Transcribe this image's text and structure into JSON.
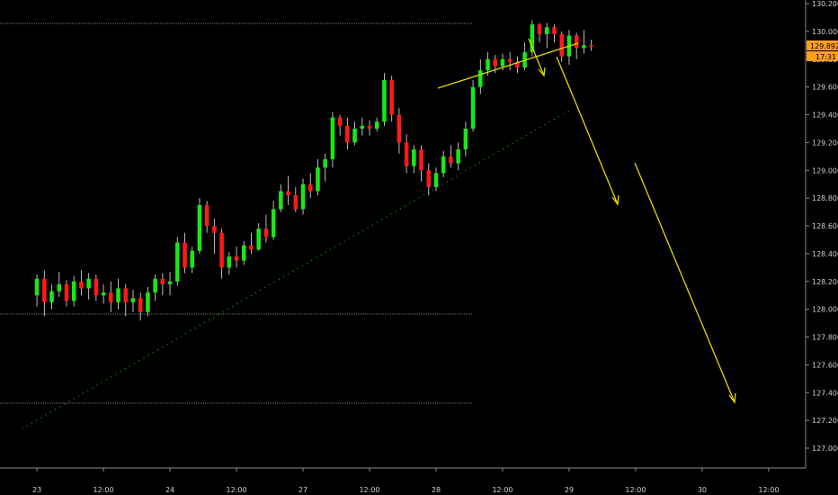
{
  "chart_data": {
    "type": "candlestick",
    "price_axis": {
      "labels": [
        "130.200",
        "130.000",
        "129.800",
        "129.600",
        "129.400",
        "129.200",
        "129.000",
        "128.800",
        "128.600",
        "128.400",
        "128.200",
        "128.000",
        "127.800",
        "127.600",
        "127.400",
        "127.200",
        "127.000"
      ],
      "values": [
        130.2,
        130.0,
        129.8,
        129.6,
        129.4,
        129.2,
        129.0,
        128.8,
        128.6,
        128.4,
        128.2,
        128.0,
        127.8,
        127.6,
        127.4,
        127.2,
        127.0
      ],
      "ylim": [
        127.0,
        130.2
      ]
    },
    "time_axis": {
      "labels": [
        "23",
        "12:00",
        "24",
        "12:00",
        "27",
        "12:00",
        "28",
        "12:00",
        "29",
        "12:00",
        "30",
        "12:00"
      ],
      "index": [
        0,
        9,
        18,
        27,
        36,
        45,
        54,
        63,
        72,
        81,
        90,
        99
      ],
      "xlim": [
        -5,
        104
      ]
    },
    "last_price": "129.892",
    "countdown": "17:31",
    "candles": [
      [
        128.1,
        128.22,
        128.25,
        128.02
      ],
      [
        128.22,
        128.05,
        128.28,
        127.95
      ],
      [
        128.05,
        128.13,
        128.18,
        128.0
      ],
      [
        128.13,
        128.18,
        128.27,
        128.09
      ],
      [
        128.18,
        128.06,
        128.21,
        128.02
      ],
      [
        128.06,
        128.2,
        128.24,
        128.02
      ],
      [
        128.2,
        128.15,
        128.28,
        128.1
      ],
      [
        128.15,
        128.22,
        128.26,
        128.07
      ],
      [
        128.22,
        128.1,
        128.25,
        128.06
      ],
      [
        128.1,
        128.12,
        128.18,
        128.04
      ],
      [
        128.12,
        128.05,
        128.2,
        127.98
      ],
      [
        128.05,
        128.15,
        128.22,
        128.0
      ],
      [
        128.15,
        128.05,
        128.18,
        127.95
      ],
      [
        128.05,
        128.08,
        128.14,
        127.98
      ],
      [
        128.08,
        127.98,
        128.12,
        127.92
      ],
      [
        127.98,
        128.12,
        128.16,
        127.95
      ],
      [
        128.12,
        128.22,
        128.25,
        128.06
      ],
      [
        128.22,
        128.18,
        128.26,
        128.1
      ],
      [
        128.18,
        128.2,
        128.27,
        128.1
      ],
      [
        128.2,
        128.48,
        128.52,
        128.17
      ],
      [
        128.48,
        128.3,
        128.55,
        128.26
      ],
      [
        128.3,
        128.42,
        128.45,
        128.26
      ],
      [
        128.42,
        128.75,
        128.8,
        128.4
      ],
      [
        128.75,
        128.6,
        128.78,
        128.55
      ],
      [
        128.6,
        128.55,
        128.65,
        128.4
      ],
      [
        128.55,
        128.3,
        128.58,
        128.22
      ],
      [
        128.3,
        128.38,
        128.41,
        128.25
      ],
      [
        128.38,
        128.35,
        128.45,
        128.3
      ],
      [
        128.35,
        128.46,
        128.49,
        128.32
      ],
      [
        128.46,
        128.43,
        128.55,
        128.4
      ],
      [
        128.43,
        128.58,
        128.62,
        128.42
      ],
      [
        128.58,
        128.52,
        128.68,
        128.48
      ],
      [
        128.52,
        128.72,
        128.78,
        128.5
      ],
      [
        128.72,
        128.85,
        128.9,
        128.7
      ],
      [
        128.85,
        128.82,
        128.96,
        128.75
      ],
      [
        128.82,
        128.72,
        128.88,
        128.7
      ],
      [
        128.72,
        128.9,
        128.94,
        128.68
      ],
      [
        128.9,
        128.85,
        128.98,
        128.8
      ],
      [
        128.85,
        129.02,
        129.08,
        128.82
      ],
      [
        129.02,
        129.08,
        129.12,
        128.92
      ],
      [
        129.08,
        129.38,
        129.42,
        129.02
      ],
      [
        129.38,
        129.32,
        129.4,
        129.25
      ],
      [
        129.32,
        129.2,
        129.38,
        129.15
      ],
      [
        129.2,
        129.3,
        129.35,
        129.18
      ],
      [
        129.3,
        129.32,
        129.38,
        129.25
      ],
      [
        129.32,
        129.3,
        129.36,
        129.25
      ],
      [
        129.3,
        129.35,
        129.38,
        129.28
      ],
      [
        129.35,
        129.65,
        129.7,
        129.32
      ],
      [
        129.65,
        129.4,
        129.68,
        129.35
      ],
      [
        129.4,
        129.2,
        129.45,
        129.12
      ],
      [
        129.2,
        129.03,
        129.26,
        128.98
      ],
      [
        129.03,
        129.15,
        129.18,
        128.98
      ],
      [
        129.15,
        129.0,
        129.18,
        128.92
      ],
      [
        129.0,
        128.88,
        129.05,
        128.82
      ],
      [
        128.88,
        128.98,
        129.02,
        128.85
      ],
      [
        128.98,
        129.1,
        129.14,
        128.95
      ],
      [
        129.1,
        129.05,
        129.18,
        129.02
      ],
      [
        129.05,
        129.15,
        129.2,
        129.0
      ],
      [
        129.15,
        129.3,
        129.35,
        129.1
      ],
      [
        129.3,
        129.6,
        129.65,
        129.28
      ],
      [
        129.6,
        129.72,
        129.8,
        129.55
      ],
      [
        129.72,
        129.8,
        129.85,
        129.68
      ],
      [
        129.8,
        129.75,
        129.83,
        129.7
      ],
      [
        129.75,
        129.8,
        129.84,
        129.72
      ],
      [
        129.8,
        129.78,
        129.85,
        129.72
      ],
      [
        129.78,
        129.74,
        129.82,
        129.7
      ],
      [
        129.74,
        129.85,
        129.92,
        129.72
      ],
      [
        129.85,
        130.05,
        130.08,
        129.82
      ],
      [
        130.05,
        129.98,
        130.06,
        129.92
      ],
      [
        129.98,
        130.03,
        130.06,
        129.88
      ],
      [
        130.03,
        129.98,
        130.05,
        129.92
      ],
      [
        129.98,
        129.82,
        130.0,
        129.78
      ],
      [
        129.82,
        129.97,
        130.01,
        129.76
      ],
      [
        129.97,
        129.88,
        129.99,
        129.8
      ],
      [
        129.88,
        129.9,
        130.01,
        129.84
      ],
      [
        129.9,
        129.89,
        129.94,
        129.86
      ]
    ],
    "trend_line_values": {
      "start": [
        -2,
        127.14
      ],
      "end": [
        72,
        129.43
      ]
    }
  }
}
